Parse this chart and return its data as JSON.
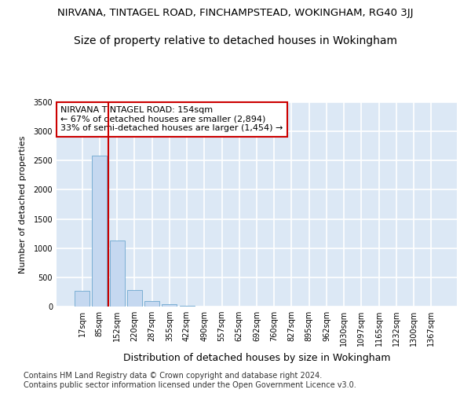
{
  "title": "NIRVANA, TINTAGEL ROAD, FINCHAMPSTEAD, WOKINGHAM, RG40 3JJ",
  "subtitle": "Size of property relative to detached houses in Wokingham",
  "xlabel": "Distribution of detached houses by size in Wokingham",
  "ylabel": "Number of detached properties",
  "bar_color": "#c5d8f0",
  "bar_edge_color": "#7bafd4",
  "background_color": "#e8f0f8",
  "plot_bg_color": "#dce8f5",
  "grid_color": "#ffffff",
  "categories": [
    "17sqm",
    "85sqm",
    "152sqm",
    "220sqm",
    "287sqm",
    "355sqm",
    "422sqm",
    "490sqm",
    "557sqm",
    "625sqm",
    "692sqm",
    "760sqm",
    "827sqm",
    "895sqm",
    "962sqm",
    "1030sqm",
    "1097sqm",
    "1165sqm",
    "1232sqm",
    "1300sqm",
    "1367sqm"
  ],
  "values": [
    270,
    2590,
    1130,
    285,
    90,
    45,
    8,
    4,
    0,
    0,
    0,
    0,
    0,
    0,
    0,
    0,
    0,
    0,
    0,
    0,
    0
  ],
  "ylim": [
    0,
    3500
  ],
  "yticks": [
    0,
    500,
    1000,
    1500,
    2000,
    2500,
    3000,
    3500
  ],
  "property_line_color": "#cc0000",
  "annotation_text": "NIRVANA TINTAGEL ROAD: 154sqm\n← 67% of detached houses are smaller (2,894)\n33% of semi-detached houses are larger (1,454) →",
  "annotation_box_color": "#ffffff",
  "annotation_box_edge_color": "#cc0000",
  "footer_text": "Contains HM Land Registry data © Crown copyright and database right 2024.\nContains public sector information licensed under the Open Government Licence v3.0.",
  "title_fontsize": 9.5,
  "subtitle_fontsize": 10,
  "annotation_fontsize": 8,
  "footer_fontsize": 7,
  "ylabel_fontsize": 8,
  "xlabel_fontsize": 9
}
